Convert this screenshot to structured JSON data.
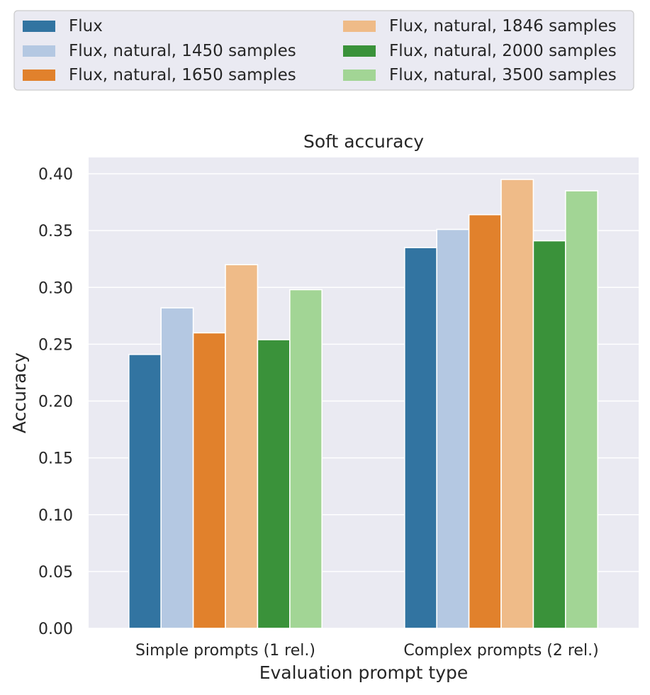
{
  "chart_data": {
    "type": "bar",
    "title": "Soft accuracy",
    "xlabel": "Evaluation prompt type",
    "ylabel": "Accuracy",
    "categories": [
      "Simple prompts (1 rel.)",
      "Complex prompts (2 rel.)"
    ],
    "ylim": [
      0,
      0.4
    ],
    "yticks": [
      "0.00",
      "0.05",
      "0.10",
      "0.15",
      "0.20",
      "0.25",
      "0.30",
      "0.35",
      "0.40"
    ],
    "grid": true,
    "legend_position": "top, above plot",
    "series": [
      {
        "name": "Flux",
        "color": "#3274a1",
        "values": [
          0.241,
          0.335
        ]
      },
      {
        "name": "Flux, natural, 1450 samples",
        "color": "#b4c8e2",
        "values": [
          0.282,
          0.351
        ]
      },
      {
        "name": "Flux, natural, 1650 samples",
        "color": "#e1812c",
        "values": [
          0.26,
          0.364
        ]
      },
      {
        "name": "Flux, natural, 1846 samples",
        "color": "#efbb88",
        "values": [
          0.32,
          0.395
        ]
      },
      {
        "name": "Flux, natural, 2000 samples",
        "color": "#3a923a",
        "values": [
          0.254,
          0.341
        ]
      },
      {
        "name": "Flux, natural, 3500 samples",
        "color": "#a2d595",
        "values": [
          0.298,
          0.385
        ]
      }
    ]
  }
}
